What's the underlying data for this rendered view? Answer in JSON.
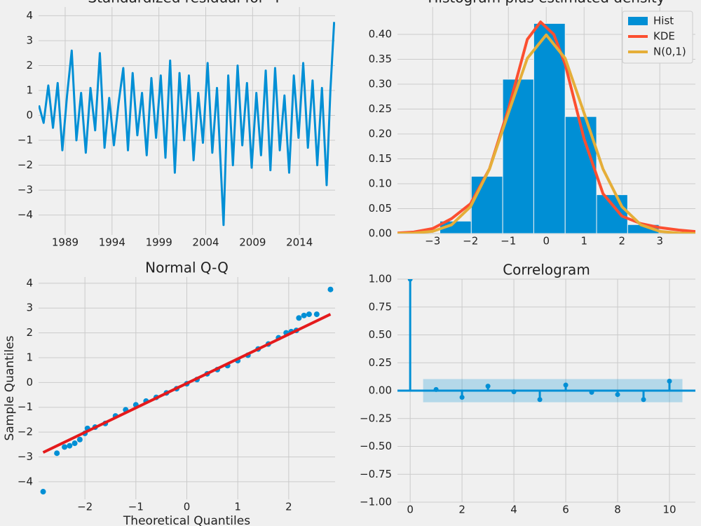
{
  "chart_data": [
    {
      "type": "line",
      "title": "Standardized residual for \"I\"",
      "color": "#008fd5",
      "grid": true,
      "x": [
        1986.2,
        1986.7,
        1987.2,
        1987.7,
        1988.2,
        1988.7,
        1989.2,
        1989.7,
        1990.2,
        1990.7,
        1991.2,
        1991.7,
        1992.2,
        1992.7,
        1993.2,
        1993.7,
        1994.2,
        1994.7,
        1995.2,
        1995.7,
        1996.2,
        1996.7,
        1997.2,
        1997.7,
        1998.2,
        1998.7,
        1999.2,
        1999.7,
        2000.2,
        2000.7,
        2001.2,
        2001.7,
        2002.2,
        2002.7,
        2003.2,
        2003.7,
        2004.2,
        2004.7,
        2005.2,
        2005.9,
        2006.4,
        2006.9,
        2007.4,
        2007.9,
        2008.4,
        2008.9,
        2009.4,
        2009.9,
        2010.4,
        2010.9,
        2011.4,
        2011.9,
        2012.4,
        2012.9,
        2013.4,
        2013.9,
        2014.4,
        2014.9,
        2015.4,
        2015.9,
        2016.4,
        2016.9,
        2017.3,
        2017.7
      ],
      "values": [
        0.4,
        -0.3,
        1.2,
        -0.5,
        1.3,
        -1.4,
        0.8,
        2.6,
        -1.0,
        0.9,
        -1.5,
        1.1,
        -0.6,
        2.5,
        -1.3,
        0.7,
        -1.2,
        0.5,
        1.9,
        -1.4,
        1.7,
        -0.8,
        0.9,
        -1.6,
        1.5,
        -0.9,
        1.6,
        -1.7,
        2.2,
        -2.3,
        1.7,
        -1.0,
        1.6,
        -1.8,
        0.9,
        -1.1,
        2.1,
        -1.5,
        1.1,
        -4.4,
        1.6,
        -2.0,
        2.0,
        -1.2,
        1.3,
        -2.1,
        0.9,
        -1.6,
        1.8,
        -2.2,
        1.9,
        -1.4,
        0.8,
        -2.3,
        1.6,
        -0.9,
        2.1,
        -1.3,
        1.4,
        -2.0,
        1.1,
        -2.8,
        1.0,
        3.75
      ],
      "xlim": [
        1986.16,
        2017.8
      ],
      "xticks": [
        1989,
        1994,
        1999,
        2004,
        2009,
        2014
      ],
      "ylim": [
        -4.8,
        4.35
      ],
      "yticks": [
        {
          "value": -4,
          "label": "−4"
        },
        {
          "value": -3,
          "label": "−3"
        },
        {
          "value": -2,
          "label": "−2"
        },
        {
          "value": -1,
          "label": "−1"
        },
        0,
        1,
        2,
        3,
        4
      ]
    },
    {
      "type": "histogram",
      "title": "Histogram plus estimated density",
      "grid": true,
      "legend": "upper right",
      "bins": [
        -2.81,
        -1.98,
        -1.15,
        -0.33,
        0.5,
        1.33,
        2.15,
        2.98
      ],
      "series": [
        {
          "name": "Hist",
          "color": "#008fd5",
          "values": [
            0.025,
            0.115,
            0.31,
            0.422,
            0.235,
            0.078,
            0.018
          ]
        },
        {
          "name": "KDE",
          "color": "#fc4f30",
          "x": [
            -3.93,
            -3.5,
            -3,
            -2.5,
            -2,
            -1.5,
            -1,
            -0.5,
            -0.15,
            0.2,
            0.5,
            1,
            1.5,
            2,
            2.5,
            3,
            3.5,
            3.94
          ],
          "values": [
            0.001,
            0.003,
            0.01,
            0.03,
            0.06,
            0.13,
            0.25,
            0.39,
            0.425,
            0.4,
            0.34,
            0.19,
            0.08,
            0.035,
            0.02,
            0.012,
            0.007,
            0.004
          ]
        },
        {
          "name": "N(0,1)",
          "color": "#e5ae38",
          "x": [
            -3.93,
            -3.5,
            -3,
            -2.5,
            -2,
            -1.5,
            -1,
            -0.5,
            0,
            0.5,
            1,
            1.5,
            2,
            2.5,
            3,
            3.5,
            3.94
          ],
          "values": [
            0.0002,
            0.0009,
            0.0044,
            0.0175,
            0.054,
            0.1295,
            0.242,
            0.352,
            0.399,
            0.352,
            0.242,
            0.1295,
            0.054,
            0.0175,
            0.0044,
            0.0009,
            0.0002
          ]
        }
      ],
      "xlim": [
        -3.93,
        3.94
      ],
      "xticks": [
        {
          "value": -3,
          "label": "−3"
        },
        {
          "value": -2,
          "label": "−2"
        },
        {
          "value": -1,
          "label": "−1"
        },
        0,
        1,
        2,
        3
      ],
      "ylim": [
        0,
        0.455
      ],
      "yticks": [
        {
          "value": 0,
          "label": "0.00"
        },
        {
          "value": 0.05,
          "label": "0.05"
        },
        {
          "value": 0.1,
          "label": "0.10"
        },
        {
          "value": 0.15,
          "label": "0.15"
        },
        {
          "value": 0.2,
          "label": "0.20"
        },
        {
          "value": 0.25,
          "label": "0.25"
        },
        {
          "value": 0.3,
          "label": "0.30"
        },
        {
          "value": 0.35,
          "label": "0.35"
        },
        {
          "value": 0.4,
          "label": "0.40"
        }
      ]
    },
    {
      "type": "qq",
      "title": "Normal Q-Q",
      "xlabel": "Theoretical Quantiles",
      "ylabel": "Sample Quantiles",
      "grid": true,
      "points": {
        "color": "#008fd5",
        "x": [
          -2.82,
          -2.55,
          -2.4,
          -2.3,
          -2.2,
          -2.1,
          -2.0,
          -1.95,
          -1.8,
          -1.6,
          -1.4,
          -1.2,
          -1.0,
          -0.8,
          -0.6,
          -0.4,
          -0.2,
          0,
          0.2,
          0.4,
          0.6,
          0.8,
          1.0,
          1.2,
          1.4,
          1.6,
          1.8,
          1.95,
          2.05,
          2.15,
          2.2,
          2.3,
          2.4,
          2.55,
          2.82
        ],
        "values": [
          -4.4,
          -2.85,
          -2.6,
          -2.55,
          -2.45,
          -2.3,
          -2.05,
          -1.85,
          -1.8,
          -1.65,
          -1.35,
          -1.1,
          -0.9,
          -0.75,
          -0.6,
          -0.42,
          -0.25,
          -0.05,
          0.12,
          0.35,
          0.52,
          0.68,
          0.88,
          1.1,
          1.35,
          1.55,
          1.8,
          2.0,
          2.05,
          2.1,
          2.6,
          2.7,
          2.75,
          2.75,
          3.75
        ]
      },
      "fit_line": {
        "color": "#e41a1c",
        "x": [
          -2.82,
          2.82
        ],
        "values": [
          -2.82,
          2.75
        ]
      },
      "xlim": [
        -2.91,
        2.91
      ],
      "xticks": [
        {
          "value": -2,
          "label": "−2"
        },
        {
          "value": -1,
          "label": "−1"
        },
        0,
        1,
        2
      ],
      "ylim": [
        -4.71,
        4.25
      ],
      "yticks": [
        {
          "value": -4,
          "label": "−4"
        },
        {
          "value": -3,
          "label": "−3"
        },
        {
          "value": -2,
          "label": "−2"
        },
        {
          "value": -1,
          "label": "−1"
        },
        0,
        1,
        2,
        3,
        4
      ]
    },
    {
      "type": "stem",
      "title": "Correlogram",
      "color": "#008fd5",
      "grid": true,
      "x": [
        0,
        1,
        2,
        3,
        4,
        5,
        6,
        7,
        8,
        9,
        10
      ],
      "values": [
        1,
        0.01,
        -0.06,
        0.04,
        -0.01,
        -0.08,
        0.05,
        -0.015,
        -0.035,
        -0.08,
        0.085
      ],
      "confint": [
        -0.104,
        0.104
      ],
      "conf_x": [
        0.5,
        10.5
      ],
      "xlim": [
        -0.49,
        11.0
      ],
      "xticks": [
        0,
        2,
        4,
        6,
        8,
        10
      ],
      "ylim": [
        -1,
        1
      ],
      "yticks": [
        {
          "value": -1,
          "label": "−1.00"
        },
        {
          "value": -0.75,
          "label": "−0.75"
        },
        {
          "value": -0.5,
          "label": "−0.50"
        },
        {
          "value": -0.25,
          "label": "−0.25"
        },
        {
          "value": 0,
          "label": "0.00"
        },
        {
          "value": 0.25,
          "label": "0.25"
        },
        {
          "value": 0.5,
          "label": "0.50"
        },
        {
          "value": 0.75,
          "label": "0.75"
        },
        {
          "value": 1,
          "label": "1.00"
        }
      ]
    }
  ]
}
